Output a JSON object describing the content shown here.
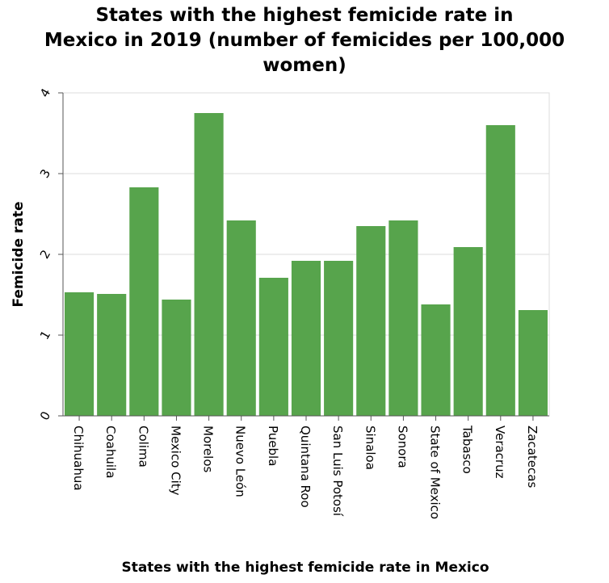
{
  "chart_data": {
    "type": "bar",
    "title_lines": [
      "States with the highest femicide rate in",
      "Mexico in 2019 (number of femicides per 100,000",
      "women)"
    ],
    "xlabel": "States with the highest femicide rate in Mexico",
    "ylabel": "Femicide rate",
    "ylim": [
      0,
      4
    ],
    "yticks": [
      "0",
      "1",
      "2",
      "3",
      "4"
    ],
    "grid": true,
    "bar_color": "#57a44c",
    "categories": [
      "Chihuahua",
      "Coahuila",
      "Colima",
      "Mexico City",
      "Morelos",
      "Nuevo León",
      "Puebla",
      "Quintana Roo",
      "San Luis Potosí",
      "Sinaloa",
      "Sonora",
      "State of Mexico",
      "Tabasco",
      "Veracruz",
      "Zacatecas"
    ],
    "values": [
      1.53,
      1.51,
      2.83,
      1.44,
      3.75,
      2.42,
      1.71,
      1.92,
      1.92,
      2.35,
      2.42,
      1.38,
      2.09,
      3.6,
      1.31
    ]
  }
}
